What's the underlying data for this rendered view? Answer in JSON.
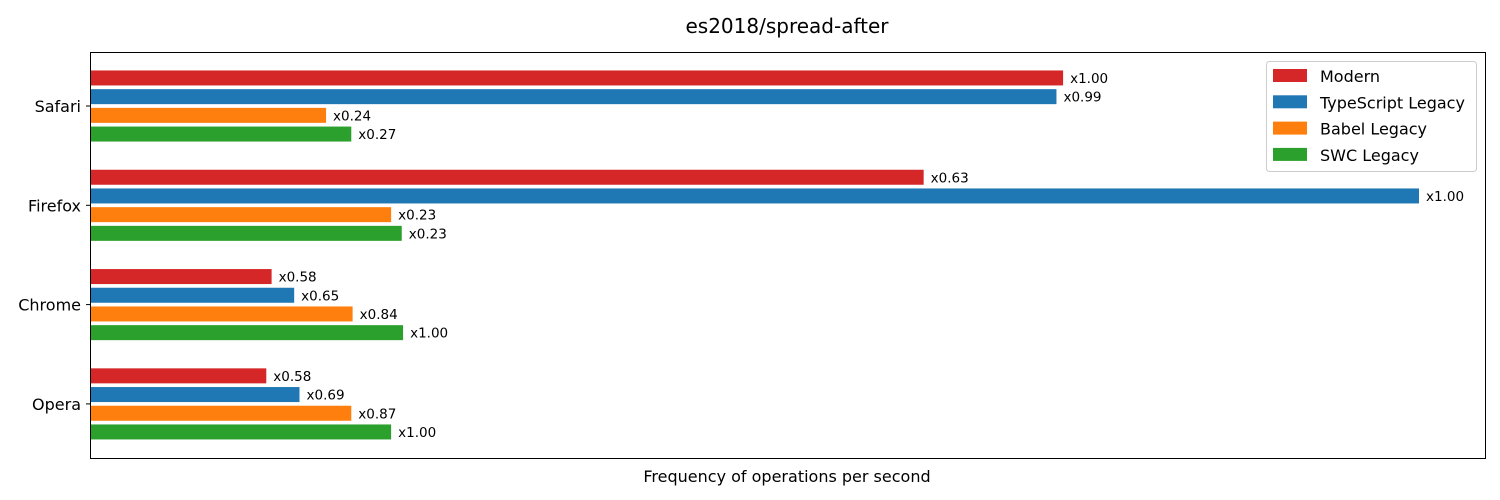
{
  "chart_data": {
    "type": "bar",
    "orientation": "horizontal",
    "title": "es2018/spread-after",
    "xlabel": "Frequency of operations per second",
    "ylabel": "",
    "x_ticks_shown": false,
    "grid": false,
    "legend_position": "top-right",
    "categories": [
      "Safari",
      "Firefox",
      "Chrome",
      "Opera"
    ],
    "series": [
      {
        "name": "Modern",
        "color": "#d62728",
        "values": [
          1.0,
          0.63,
          0.58,
          0.58
        ],
        "labels": [
          "x1.00",
          "x0.63",
          "x0.58",
          "x0.58"
        ],
        "relative_length": [
          0.732,
          0.627,
          0.136,
          0.132
        ]
      },
      {
        "name": "TypeScript Legacy",
        "color": "#1f77b4",
        "values": [
          0.99,
          1.0,
          0.65,
          0.69
        ],
        "labels": [
          "x0.99",
          "x1.00",
          "x0.65",
          "x0.69"
        ],
        "relative_length": [
          0.727,
          1.0,
          0.153,
          0.157
        ]
      },
      {
        "name": "Babel Legacy",
        "color": "#ff7f0e",
        "values": [
          0.24,
          0.23,
          0.84,
          0.87
        ],
        "labels": [
          "x0.24",
          "x0.23",
          "x0.84",
          "x0.87"
        ],
        "relative_length": [
          0.177,
          0.226,
          0.197,
          0.196
        ]
      },
      {
        "name": "SWC Legacy",
        "color": "#2ca02c",
        "values": [
          0.27,
          0.23,
          1.0,
          1.0
        ],
        "labels": [
          "x0.27",
          "x0.23",
          "x1.00",
          "x1.00"
        ],
        "relative_length": [
          0.196,
          0.234,
          0.235,
          0.226
        ]
      }
    ]
  }
}
